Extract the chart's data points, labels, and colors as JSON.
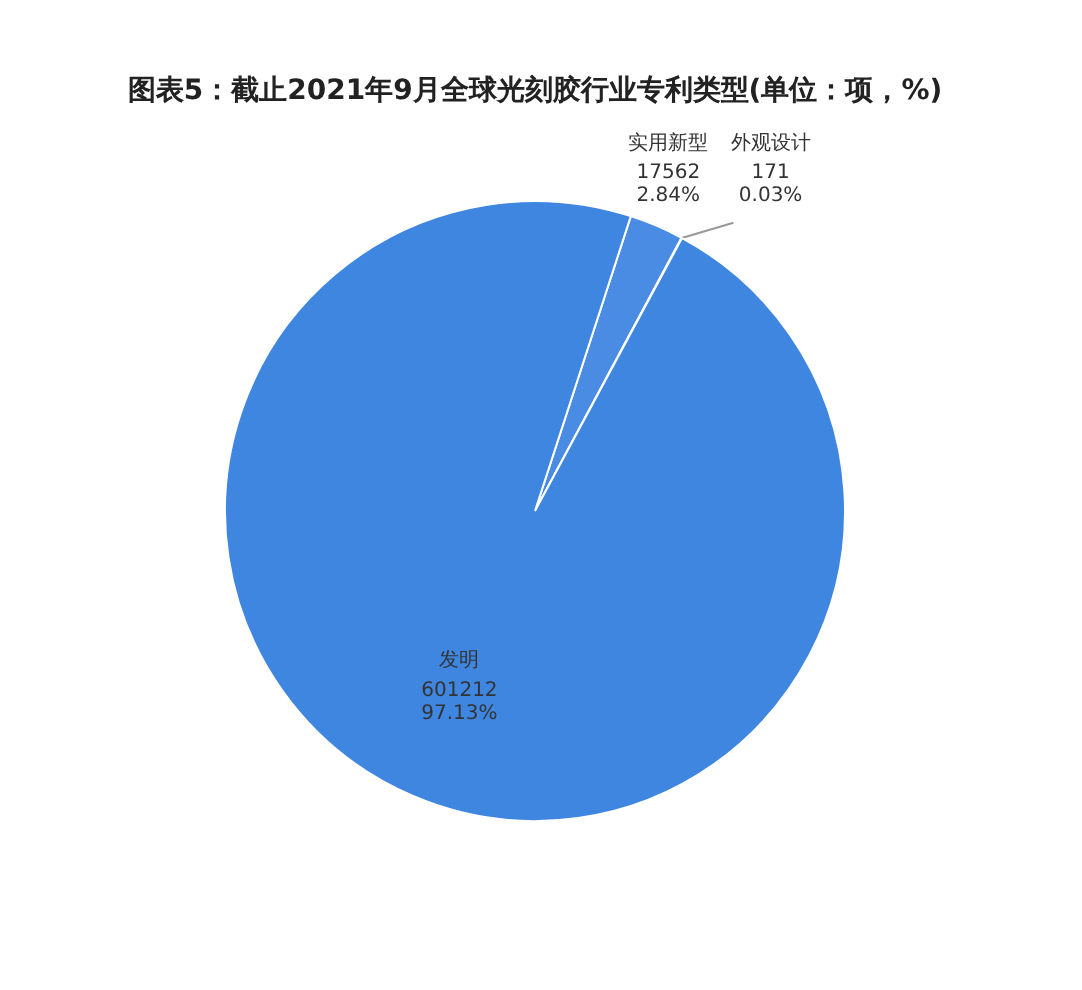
{
  "chart_data": {
    "type": "pie",
    "title": "图表5：截止2021年9月全球光刻胶行业专利类型(单位：项，%)",
    "categories": [
      "实用新型",
      "外观设计",
      "发明"
    ],
    "values": [
      17562,
      171,
      601212
    ],
    "value_labels": [
      "17562\n2.84%",
      "171\n0.03%",
      "601212\n97.13%"
    ],
    "colors": [
      "#4a8ce3",
      "#4a8ce3",
      "#3f86e0"
    ]
  }
}
